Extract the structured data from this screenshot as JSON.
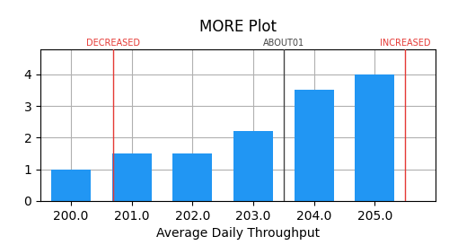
{
  "chart_data": {
    "type": "bar",
    "title": "MORE Plot",
    "x_label": "Average Daily Throughput",
    "categories": [
      "200.0",
      "201.0",
      "202.0",
      "203.0",
      "204.0",
      "205.0"
    ],
    "values": [
      1.0,
      1.5,
      1.5,
      2.2,
      3.5,
      4.0
    ],
    "color": "#2196F3",
    "ylim": [
      0,
      4.8
    ],
    "yticks": [
      0,
      1,
      2,
      3,
      4
    ],
    "grid": true,
    "annotations": [
      {
        "text": "DECREASED",
        "x": 0.7,
        "color": "#e53935"
      },
      {
        "text": "ABOUT01",
        "x": 3.5,
        "color": "#444444"
      },
      {
        "text": "INCREASED",
        "x": 5.5,
        "color": "#e53935"
      }
    ]
  }
}
